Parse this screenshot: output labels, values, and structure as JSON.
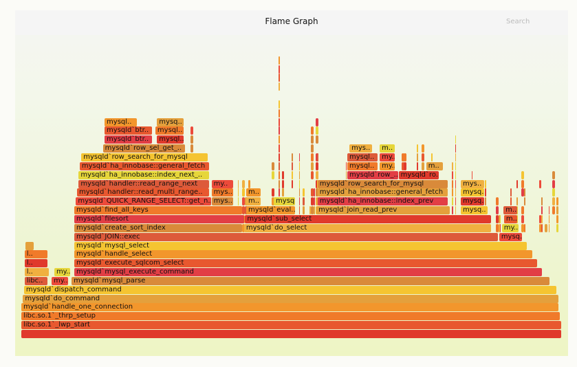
{
  "header": {
    "title": "Flame Graph",
    "search_label": "Search"
  },
  "palette": [
    "#e03a2c",
    "#e8582f",
    "#f07a2a",
    "#f2962c",
    "#e4a03c",
    "#f5c431",
    "#dd5a3a",
    "#ec4a3a",
    "#d98a3a",
    "#f0b040",
    "#e6d63a",
    "#e23e45"
  ],
  "chart_data": {
    "type": "flame",
    "x_unit": "percent of samples",
    "frames": [
      [
        0,
        0,
        100,
        ""
      ],
      [
        1,
        0,
        100,
        "libc.so.1`_lwp_start"
      ],
      [
        2,
        0,
        99.7,
        "libc.so.1`_thrp_setup"
      ],
      [
        3,
        0,
        99.5,
        "mysqld`handle_one_connection"
      ],
      [
        4,
        0.3,
        99.2,
        "mysqld`do_command"
      ],
      [
        5,
        0.5,
        98.6,
        "mysqld`dispatch_command"
      ],
      [
        6,
        0.6,
        4.3,
        "libc.."
      ],
      [
        6,
        5.6,
        3.2,
        "my.."
      ],
      [
        6,
        9.3,
        88.6,
        "mysqld`mysql_parse"
      ],
      [
        7,
        0.6,
        4.6,
        "l.."
      ],
      [
        7,
        6.1,
        3.0,
        "my.."
      ],
      [
        7,
        9.8,
        86.7,
        "mysqld`mysql_execute_command"
      ],
      [
        8,
        0.6,
        4.3,
        "l.."
      ],
      [
        8,
        9.8,
        85.7,
        "mysqld`execute_sqlcom_select"
      ],
      [
        9,
        0.6,
        4.3,
        "l.."
      ],
      [
        9,
        9.8,
        84.8,
        "mysqld`handle_select"
      ],
      [
        10,
        0.8,
        1.6,
        ""
      ],
      [
        10,
        9.8,
        83.9,
        "mysqld`mysql_select"
      ],
      [
        11,
        9.8,
        78.5,
        "mysqld`JOIN::exec"
      ],
      [
        11,
        88.4,
        4.3,
        "mysq.."
      ],
      [
        12,
        9.8,
        31.2,
        "mysqld`create_sort_index"
      ],
      [
        12,
        41.2,
        45.8,
        "mysqld`do_select"
      ],
      [
        12,
        88.9,
        3.2,
        "my.."
      ],
      [
        13,
        9.8,
        31.6,
        "mysqld`filesort"
      ],
      [
        13,
        41.4,
        45.6,
        "mysqld`sub_select"
      ],
      [
        13,
        89.3,
        2.5,
        "m.."
      ],
      [
        14,
        9.8,
        31.2,
        "mysqld`find_all_keys"
      ],
      [
        14,
        41.6,
        9.2,
        "mysqld`eval.."
      ],
      [
        14,
        54.6,
        24.8,
        "mysqld`join_read_prev"
      ],
      [
        14,
        81.3,
        5.1,
        "mysq.."
      ],
      [
        14,
        89.2,
        2.6,
        "m.."
      ],
      [
        15,
        10.1,
        25.2,
        "mysqld`QUICK_RANGE_SELECT::get_n.."
      ],
      [
        15,
        35.2,
        4.1,
        "mys.."
      ],
      [
        15,
        41.6,
        2.8,
        "m.."
      ],
      [
        15,
        46.7,
        4.1,
        "mysq.."
      ],
      [
        15,
        54.8,
        24.2,
        "mysqld`ha_innobase::index_prev"
      ],
      [
        15,
        81.3,
        4.5,
        "mysq.."
      ],
      [
        16,
        10.3,
        24.6,
        "mysqld`handler::read_multi_range.."
      ],
      [
        16,
        35.2,
        4.1,
        "mys.."
      ],
      [
        16,
        41.6,
        2.8,
        "m.."
      ],
      [
        16,
        54.8,
        24.2,
        "mysqld`ha_innobase::general_fetch"
      ],
      [
        16,
        81.3,
        4.5,
        "mysq.."
      ],
      [
        17,
        10.6,
        24.3,
        "mysqld`handler::read_range_next"
      ],
      [
        17,
        35.2,
        4.1,
        "my.."
      ],
      [
        17,
        54.8,
        24.2,
        "mysqld`row_search_for_mysql"
      ],
      [
        17,
        81.3,
        4.5,
        "mys.."
      ],
      [
        18,
        10.6,
        24.3,
        "mysqld`ha_innobase::index_next_.."
      ],
      [
        18,
        60.3,
        9.5,
        "mysqld`row_.."
      ],
      [
        18,
        69.8,
        7.6,
        "mysqld`ro.."
      ],
      [
        19,
        10.8,
        24.0,
        "mysqld`ha_innobase::general_fetch"
      ],
      [
        19,
        60.3,
        5.7,
        "mysql.."
      ],
      [
        19,
        66.3,
        2.9,
        "my.."
      ],
      [
        19,
        74.9,
        3.2,
        "m.."
      ],
      [
        20,
        11.1,
        23.5,
        "mysqld`row_search_for_mysql"
      ],
      [
        20,
        60.3,
        5.7,
        "mysql.."
      ],
      [
        20,
        66.3,
        2.9,
        "my.."
      ],
      [
        21,
        15.1,
        15.3,
        "mysqld`row_sel_get_.."
      ],
      [
        21,
        60.7,
        4.3,
        "mys.."
      ],
      [
        21,
        66.3,
        2.9,
        "m.."
      ],
      [
        22,
        15.4,
        8.9,
        "mysqld`btr.."
      ],
      [
        22,
        25.1,
        5.1,
        "mysql.."
      ],
      [
        23,
        15.4,
        8.9,
        "mysqld`btr.."
      ],
      [
        23,
        24.8,
        5.3,
        "mysql.."
      ],
      [
        24,
        15.4,
        6.1,
        "mysql.."
      ],
      [
        24,
        25.1,
        5.1,
        "mysq.."
      ]
    ]
  }
}
